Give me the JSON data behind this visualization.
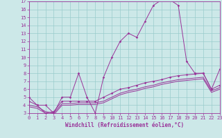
{
  "xlabel": "Windchill (Refroidissement éolien,°C)",
  "bg_color": "#cce8e8",
  "line_color": "#993399",
  "grid_color": "#99cccc",
  "x_data": [
    0,
    1,
    2,
    3,
    4,
    5,
    6,
    7,
    8,
    9,
    10,
    11,
    12,
    13,
    14,
    15,
    16,
    17,
    18,
    19,
    20,
    21,
    22,
    23
  ],
  "series1": [
    5,
    4,
    4,
    3,
    5,
    5,
    8,
    5,
    3,
    7.5,
    10,
    12,
    13,
    12.5,
    14.5,
    16.5,
    17.2,
    17.2,
    16.5,
    9.5,
    8,
    8,
    6,
    8.5
  ],
  "series2": [
    4.5,
    4,
    3,
    3.2,
    4.5,
    4.5,
    4.5,
    4.5,
    4.5,
    5,
    5.5,
    6,
    6.2,
    6.5,
    6.8,
    7.0,
    7.2,
    7.5,
    7.7,
    7.8,
    7.9,
    8.0,
    6.0,
    6.5
  ],
  "series3": [
    4.0,
    3.8,
    3.2,
    3.0,
    4.2,
    4.2,
    4.3,
    4.3,
    4.3,
    4.5,
    5.0,
    5.5,
    5.8,
    6.0,
    6.3,
    6.5,
    6.8,
    7.0,
    7.2,
    7.3,
    7.4,
    7.5,
    5.8,
    6.2
  ],
  "series4": [
    3.8,
    3.6,
    3.0,
    2.8,
    4.0,
    4.0,
    4.1,
    4.1,
    4.1,
    4.3,
    4.8,
    5.3,
    5.6,
    5.8,
    6.1,
    6.3,
    6.6,
    6.8,
    7.0,
    7.1,
    7.2,
    7.3,
    5.6,
    6.0
  ],
  "ylim": [
    3,
    17
  ],
  "xlim": [
    0,
    23
  ],
  "yticks": [
    3,
    4,
    5,
    6,
    7,
    8,
    9,
    10,
    11,
    12,
    13,
    14,
    15,
    16,
    17
  ],
  "xticks": [
    0,
    1,
    2,
    3,
    4,
    5,
    6,
    7,
    8,
    9,
    10,
    11,
    12,
    13,
    14,
    15,
    16,
    17,
    18,
    19,
    20,
    21,
    22,
    23
  ],
  "tick_fontsize": 5,
  "xlabel_fontsize": 5.5,
  "lw": 0.7,
  "ms": 1.8
}
